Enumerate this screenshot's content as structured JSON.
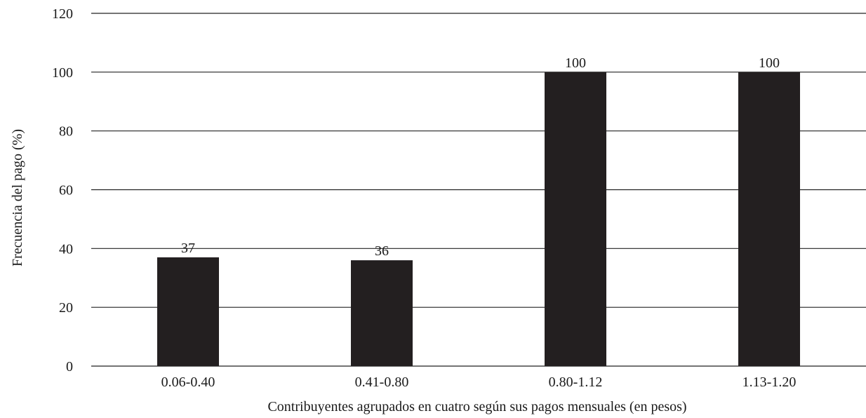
{
  "chart_data": {
    "type": "bar",
    "categories": [
      "0.06-0.40",
      "0.41-0.80",
      "0.80-1.12",
      "1.13-1.20"
    ],
    "values": [
      37,
      36,
      100,
      100
    ],
    "data_labels": [
      "37",
      "36",
      "100",
      "100"
    ],
    "xlabel": "Contribuyentes agrupados en cuatro según sus pagos mensuales (en pesos)",
    "ylabel": "Frecuencia del pago (%)",
    "ylim": [
      0,
      120
    ],
    "yticks": [
      "0",
      "20",
      "40",
      "60",
      "80",
      "100",
      "120"
    ],
    "grid": true,
    "legend": "none",
    "colors": {
      "bar": "#231f20",
      "grid": "#222222",
      "text": "#1a1a1a"
    }
  }
}
